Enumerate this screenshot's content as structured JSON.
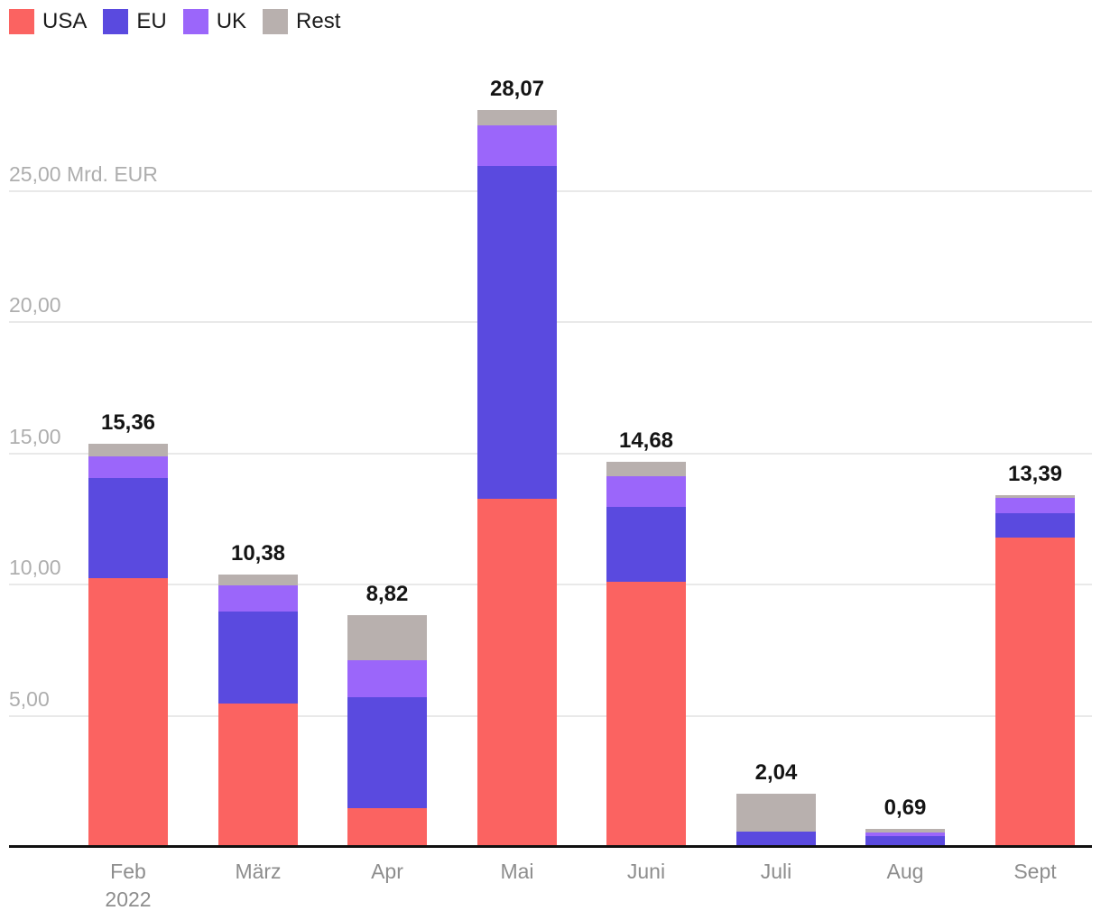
{
  "chart_data": {
    "type": "bar",
    "stacked": true,
    "unit_label": "Mrd. EUR",
    "legend_position": "top-left",
    "grid": true,
    "categories": [
      "Feb",
      "März",
      "Apr",
      "Mai",
      "Juni",
      "Juli",
      "Aug",
      "Sept"
    ],
    "category_sub_labels": [
      "2022",
      "",
      "",
      "",
      "",
      "",
      "",
      ""
    ],
    "series": [
      {
        "name": "USA",
        "color": "#FB6361",
        "values": [
          10.25,
          5.48,
          1.48,
          13.27,
          10.1,
          0.0,
          0.0,
          11.8
        ]
      },
      {
        "name": "EU",
        "color": "#5A4ADF",
        "values": [
          3.8,
          3.48,
          4.22,
          12.68,
          2.84,
          0.6,
          0.4,
          0.9
        ]
      },
      {
        "name": "UK",
        "color": "#9B66FA",
        "values": [
          0.84,
          1.02,
          1.42,
          1.55,
          1.18,
          0.0,
          0.15,
          0.6
        ]
      },
      {
        "name": "Rest",
        "color": "#B8B0AE",
        "values": [
          0.47,
          0.4,
          1.7,
          0.57,
          0.56,
          1.44,
          0.14,
          0.09
        ]
      }
    ],
    "totals": [
      15.36,
      10.38,
      8.82,
      28.07,
      14.68,
      2.04,
      0.69,
      13.39
    ],
    "totals_formatted": [
      "15,36",
      "10,38",
      "8,82",
      "28,07",
      "14,68",
      "2,04",
      "0,69",
      "13,39"
    ],
    "y_axis": {
      "ticks": [
        5,
        10,
        15,
        20,
        25
      ],
      "tick_labels": [
        "5,00",
        "10,00",
        "15,00",
        "20,00",
        "25,00 Mrd. EUR"
      ],
      "range": [
        0,
        29
      ]
    },
    "legend": [
      "USA",
      "EU",
      "UK",
      "Rest"
    ]
  }
}
